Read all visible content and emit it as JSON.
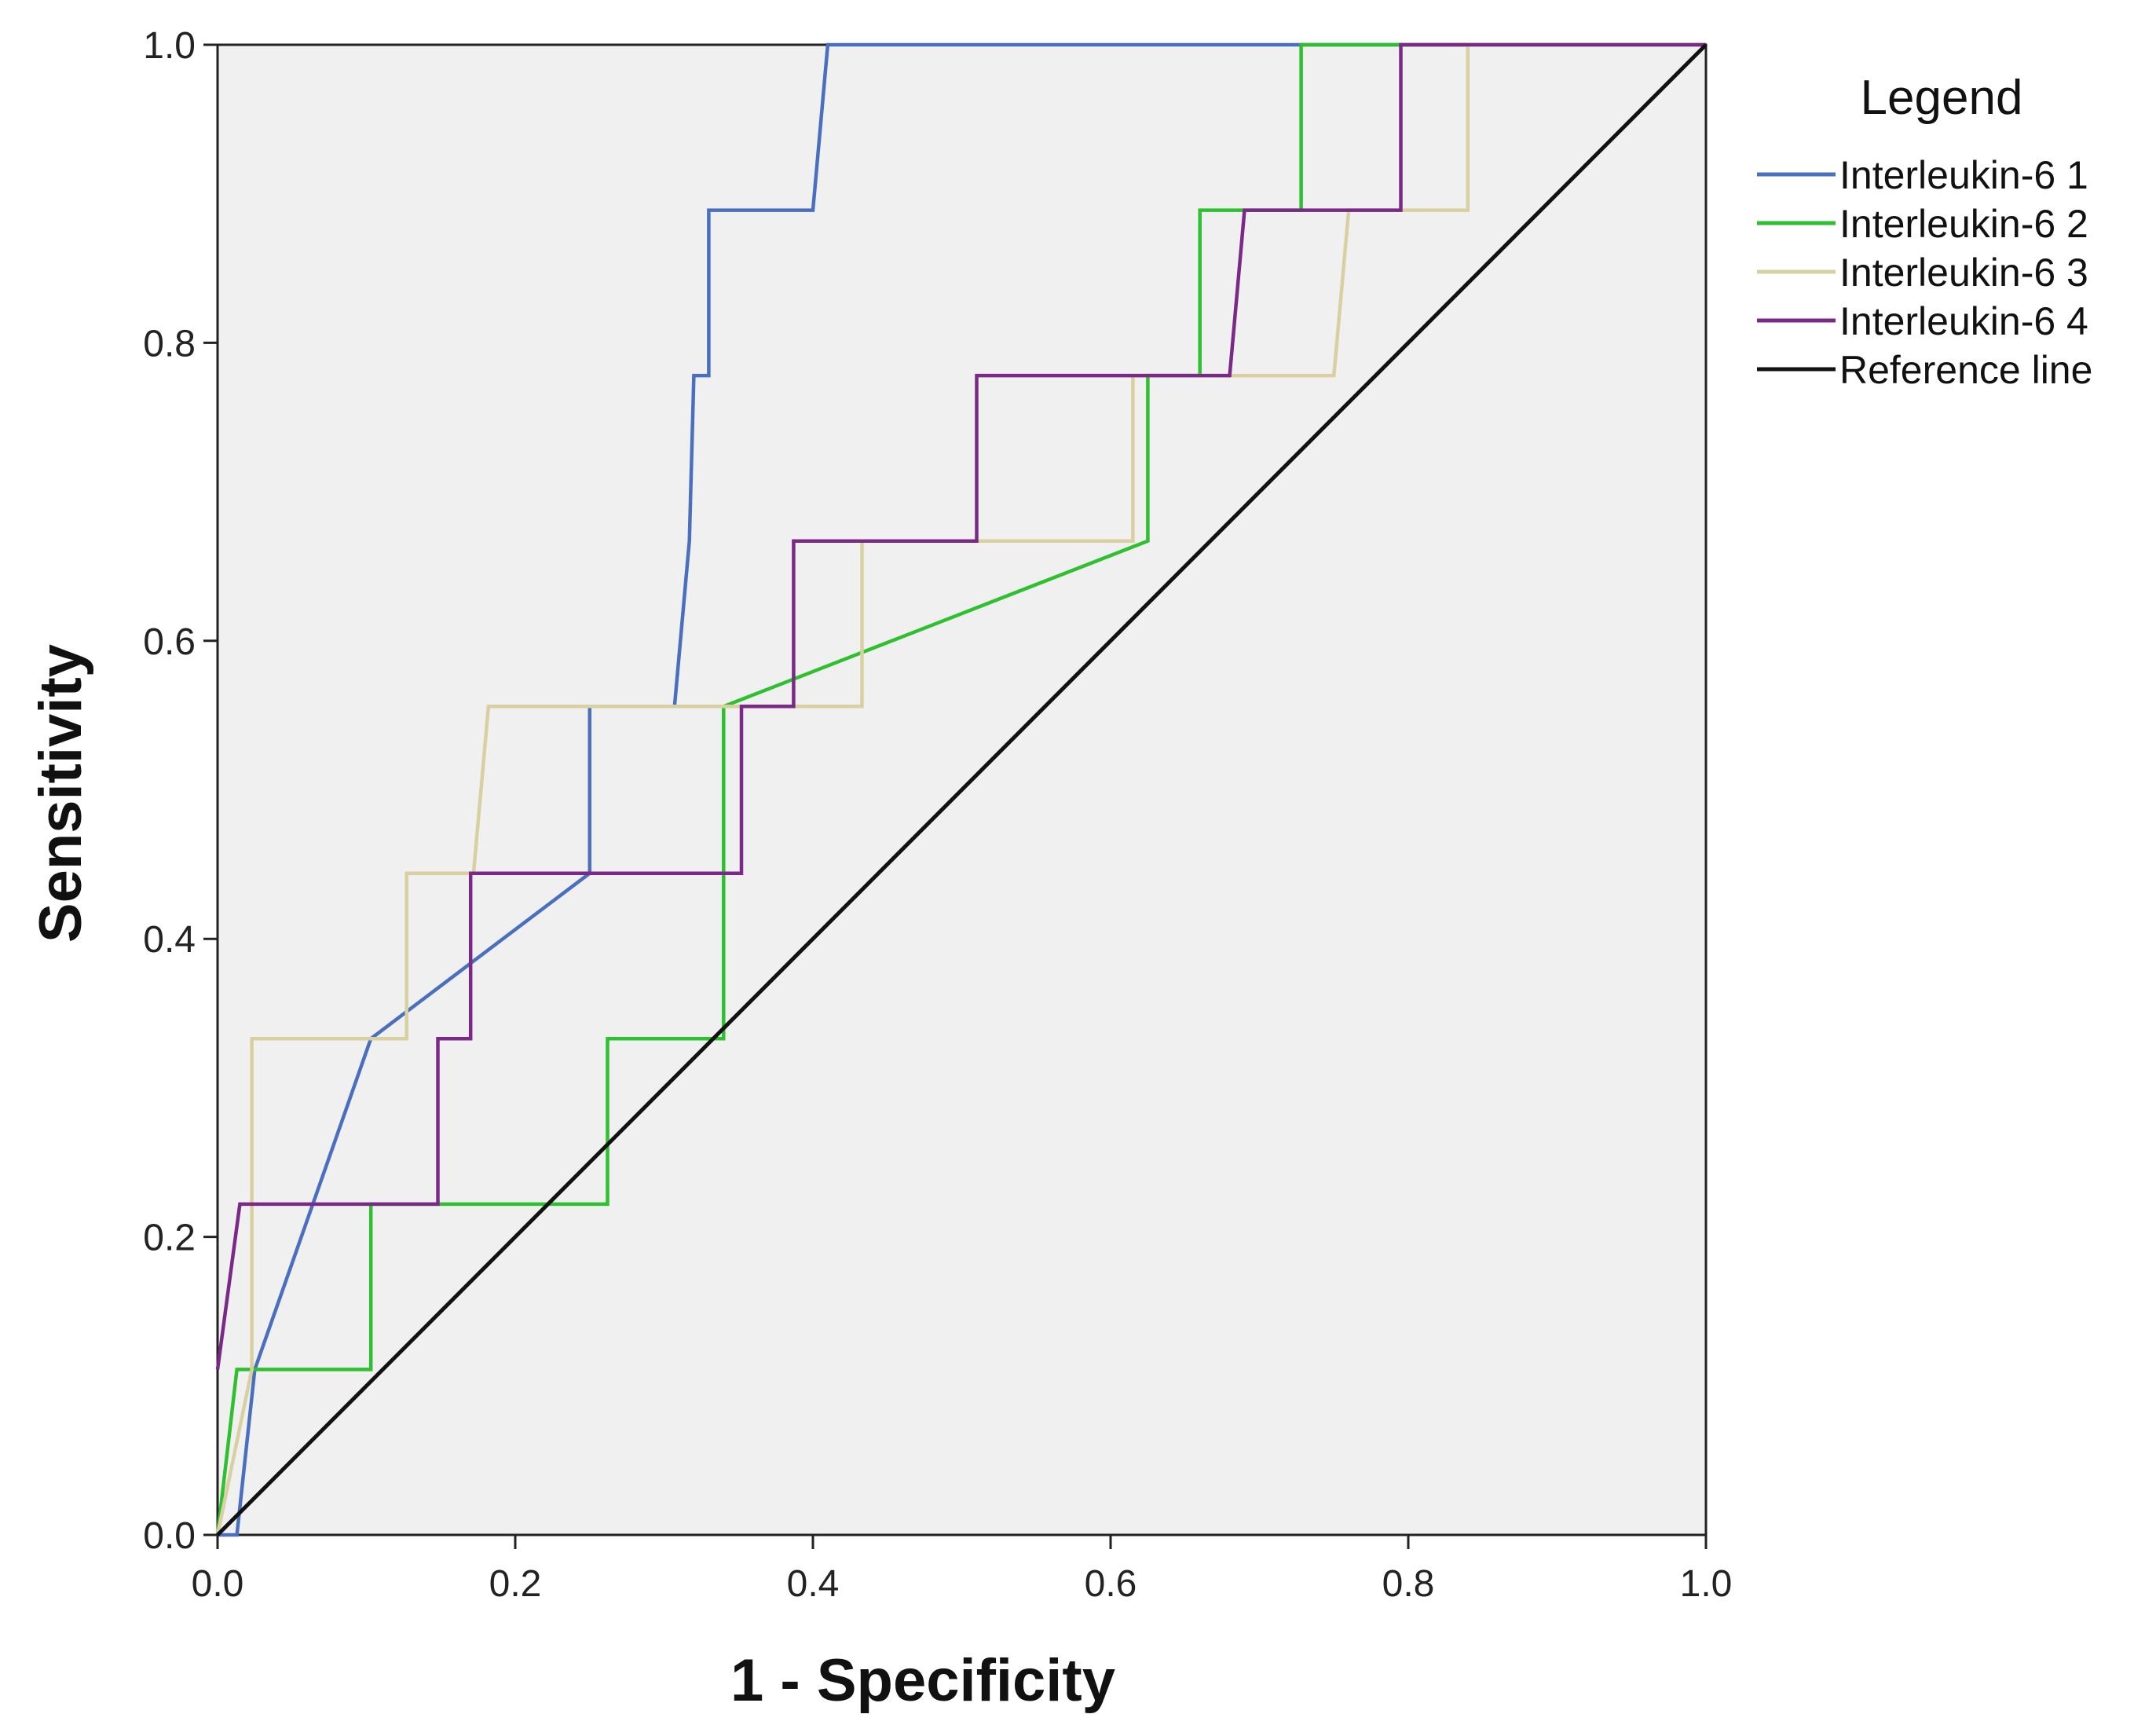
{
  "chart_data": {
    "type": "line",
    "title": "",
    "xlabel": "1 - Specificity",
    "ylabel": "Sensitivity",
    "xlim": [
      0,
      1
    ],
    "ylim": [
      0,
      1
    ],
    "xticks": [
      "0.0",
      "0.2",
      "0.4",
      "0.6",
      "0.8",
      "1.0"
    ],
    "yticks": [
      "0.0",
      "0.2",
      "0.4",
      "0.6",
      "0.8",
      "1.0"
    ],
    "plot_background": "#f0f0f0",
    "legend_title": "Legend",
    "legend_position": "right",
    "series": [
      {
        "name": "Interleukin-6 1",
        "color": "#4a6fbf",
        "x": [
          0,
          0.013,
          0.025,
          0.103,
          0.25,
          0.25,
          0.307,
          0.317,
          0.32,
          0.32,
          0.33,
          0.33,
          0.4,
          0.41,
          1.0
        ],
        "y": [
          0,
          0,
          0.111,
          0.333,
          0.444,
          0.556,
          0.556,
          0.667,
          0.778,
          0.778,
          0.778,
          0.889,
          0.889,
          1.0,
          1.0
        ]
      },
      {
        "name": "Interleukin-6 2",
        "color": "#2ec02e",
        "x": [
          0,
          0.013,
          0.103,
          0.103,
          0.262,
          0.262,
          0.34,
          0.34,
          0.625,
          0.625,
          0.66,
          0.66,
          0.728,
          0.728,
          1.0
        ],
        "y": [
          0,
          0.111,
          0.111,
          0.222,
          0.222,
          0.333,
          0.333,
          0.556,
          0.667,
          0.778,
          0.778,
          0.889,
          0.889,
          1.0,
          1.0
        ]
      },
      {
        "name": "Interleukin-6 3",
        "color": "#d8d0a0",
        "x": [
          0,
          0.023,
          0.023,
          0.127,
          0.127,
          0.172,
          0.182,
          0.433,
          0.433,
          0.615,
          0.615,
          0.75,
          0.76,
          0.84,
          0.84,
          1.0
        ],
        "y": [
          0,
          0.111,
          0.333,
          0.333,
          0.444,
          0.444,
          0.556,
          0.556,
          0.667,
          0.667,
          0.778,
          0.778,
          0.889,
          0.889,
          1.0,
          1.0
        ]
      },
      {
        "name": "Interleukin-6 4",
        "color": "#7a2a86",
        "x": [
          0,
          0.015,
          0.148,
          0.148,
          0.17,
          0.17,
          0.352,
          0.352,
          0.387,
          0.387,
          0.51,
          0.51,
          0.68,
          0.69,
          0.795,
          0.795,
          1.0
        ],
        "y": [
          0.111,
          0.222,
          0.222,
          0.333,
          0.333,
          0.444,
          0.444,
          0.556,
          0.556,
          0.667,
          0.667,
          0.778,
          0.778,
          0.889,
          0.889,
          1.0,
          1.0
        ]
      },
      {
        "name": "Reference line",
        "color": "#111111",
        "x": [
          0,
          1
        ],
        "y": [
          0,
          1
        ]
      }
    ]
  }
}
